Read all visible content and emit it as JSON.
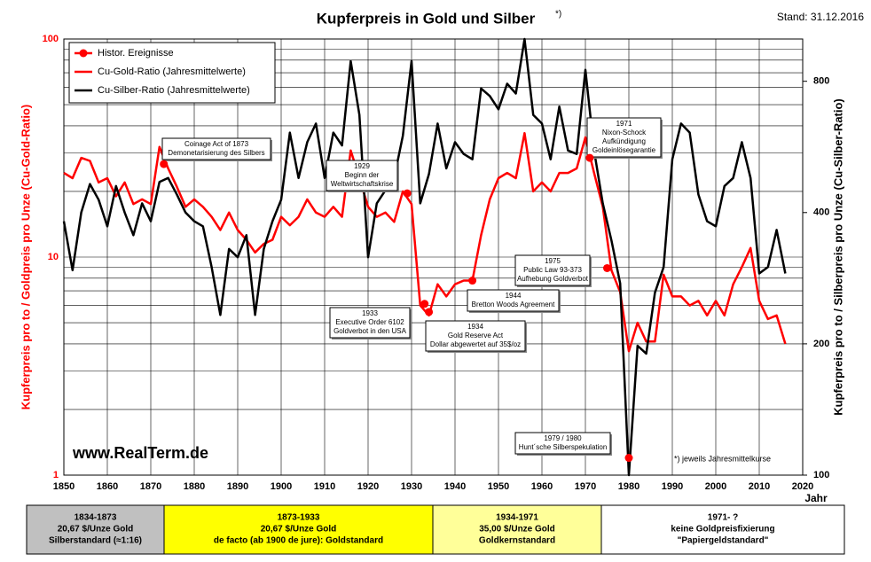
{
  "chart_data": {
    "type": "line",
    "title": "Kupferpreis in Gold und Silber",
    "title_note": "*)",
    "stand": "Stand: 31.12.2016",
    "y_label": "Kupferpreis  pro to / Goldpreis pro Unze (Cu-Gold-Ratio)",
    "y2_label": "Kupferpreis  pro to / Silberpreis pro Unze (Cu-Silber-Ratio)",
    "x_label": "Jahr",
    "website": "www.RealTerm.de",
    "footnote": "*)  jeweils Jahresmittelkurse",
    "log_scale": true,
    "grid": true,
    "legend": "upper left",
    "xlim": [
      1850,
      2020
    ],
    "xticks": [
      1850,
      1860,
      1870,
      1880,
      1890,
      1900,
      1910,
      1920,
      1930,
      1940,
      1950,
      1960,
      1970,
      1980,
      1990,
      2000,
      2010,
      2020
    ],
    "ylim": [
      1,
      100
    ],
    "yticks": [
      1,
      10,
      100
    ],
    "yminorticks": [
      2,
      3,
      4,
      5,
      6,
      7,
      8,
      9,
      20,
      30,
      40,
      50,
      60,
      70,
      80,
      90
    ],
    "y2lim": [
      100,
      1000
    ],
    "y2ticks": [
      100,
      200,
      400,
      800
    ],
    "x": [
      1850,
      1852,
      1854,
      1856,
      1858,
      1860,
      1862,
      1864,
      1866,
      1868,
      1870,
      1872,
      1874,
      1876,
      1878,
      1880,
      1882,
      1884,
      1886,
      1888,
      1890,
      1892,
      1894,
      1896,
      1898,
      1900,
      1902,
      1904,
      1906,
      1908,
      1910,
      1912,
      1914,
      1916,
      1918,
      1920,
      1922,
      1924,
      1926,
      1928,
      1930,
      1932,
      1934,
      1936,
      1938,
      1940,
      1942,
      1944,
      1946,
      1948,
      1950,
      1952,
      1954,
      1956,
      1958,
      1960,
      1962,
      1964,
      1966,
      1968,
      1970,
      1972,
      1974,
      1976,
      1978,
      1980,
      1982,
      1984,
      1986,
      1988,
      1990,
      1992,
      1994,
      1996,
      1998,
      2000,
      2002,
      2004,
      2006,
      2008,
      2010,
      2012,
      2014,
      2016
    ],
    "series": [
      {
        "name": "Cu-Gold-Ratio (Jahresmittelwerte)",
        "color": "#ff0000",
        "values": [
          24.3,
          23,
          28.5,
          27.6,
          22,
          23,
          19,
          22,
          17.5,
          18.4,
          17.5,
          32,
          25.5,
          21,
          17,
          18.4,
          17,
          15.3,
          13.3,
          16,
          13.3,
          12,
          10.5,
          11.5,
          12,
          15.3,
          14,
          15.3,
          18.4,
          16,
          15.3,
          17,
          15.3,
          30.8,
          23,
          17,
          15.3,
          16,
          14.5,
          20,
          17.5,
          6,
          5.4,
          7.5,
          6.6,
          7.5,
          7.8,
          7.8,
          12.6,
          18.4,
          23,
          24.3,
          23,
          37,
          20,
          22,
          20,
          24.3,
          24.3,
          25.5,
          35.4,
          24.3,
          17,
          8.7,
          6.9,
          3.7,
          5,
          4.1,
          4.1,
          8.3,
          6.6,
          6.6,
          6,
          6.3,
          5.4,
          6.3,
          5.4,
          7.5,
          9,
          11,
          6.3,
          5.2,
          5.4,
          4
        ]
      },
      {
        "name": "Cu-Silber-Ratio (Jahresmittelwerte)",
        "color": "#000000",
        "axis": "y2",
        "values": [
          382,
          295,
          400,
          465,
          428,
          372,
          460,
          400,
          355,
          420,
          382,
          470,
          480,
          440,
          400,
          382,
          372,
          300,
          233,
          330,
          316,
          355,
          233,
          330,
          382,
          428,
          610,
          480,
          580,
          640,
          480,
          610,
          570,
          890,
          670,
          316,
          420,
          450,
          480,
          600,
          890,
          420,
          490,
          640,
          505,
          580,
          545,
          530,
          770,
          740,
          690,
          790,
          750,
          1000,
          670,
          640,
          530,
          700,
          555,
          545,
          850,
          555,
          420,
          345,
          275,
          100,
          198,
          190,
          262,
          300,
          530,
          640,
          610,
          440,
          382,
          372,
          460,
          480,
          580,
          480,
          290,
          300,
          365,
          290
        ]
      }
    ],
    "events_legend": "Histor. Ereignisse",
    "events_color": "#ff0000",
    "events": [
      {
        "year": 1873,
        "value": 26.7,
        "lines": [
          "Coinage Act of 1873",
          "Demonetarisierung  des Silbers"
        ]
      },
      {
        "year": 1929,
        "value": 19.6,
        "lines": [
          "1929",
          "Beginn der",
          "Weltwirtschaftskrise"
        ]
      },
      {
        "year": 1933,
        "value": 6.1,
        "lines": [
          "1933",
          "Executive Order 6102",
          "Goldverbot in den USA"
        ]
      },
      {
        "year": 1934,
        "value": 5.6,
        "lines": [
          "1934",
          "Gold Reserve Act",
          "Dollar abgewertet auf 35$/oz"
        ]
      },
      {
        "year": 1944,
        "value": 7.8,
        "lines": [
          "1944",
          "Bretton Woods Agreement"
        ]
      },
      {
        "year": 1971,
        "value": 28.5,
        "lines": [
          "1971",
          "Nixon-Schock",
          "Aufkündigung",
          "Goldeinlösegarantie"
        ]
      },
      {
        "year": 1975,
        "value": 8.9,
        "lines": [
          "1975",
          "Public Law 93-373",
          "Aufhebung  Goldverbot"
        ]
      },
      {
        "year": 1980,
        "value": 1.2,
        "lines": [
          "1979 / 1980",
          "Hunt´sche Silberspekulation"
        ]
      }
    ],
    "periods": [
      {
        "color": "#c0c0c0",
        "lines": [
          "1834-1873",
          "20,67 $/Unze Gold",
          "Silberstandard (≈1:16)"
        ]
      },
      {
        "color": "#ffff00",
        "lines": [
          "1873-1933",
          "20,67 $/Unze Gold",
          "de facto (ab 1900 de jure): Goldstandard"
        ]
      },
      {
        "color": "#ffff99",
        "lines": [
          "1934-1971",
          "35,00 $/Unze Gold",
          "Goldkernstandard"
        ]
      },
      {
        "color": "#ffffff",
        "lines": [
          "1971-  ?",
          "keine Goldpreisfixierung",
          "\"Papiergeldstandard\""
        ]
      }
    ]
  }
}
